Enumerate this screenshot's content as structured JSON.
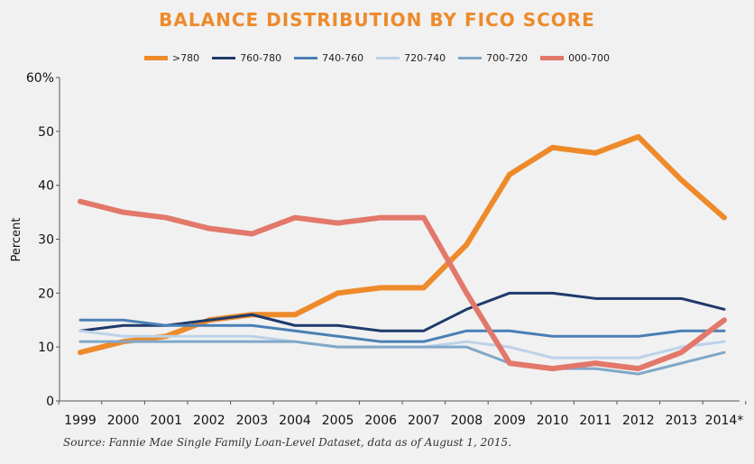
{
  "chart_data": {
    "type": "line",
    "title": "BALANCE DISTRIBUTION BY FICO SCORE",
    "ylabel": "Percent",
    "xlabel": "",
    "ylim": [
      0,
      60
    ],
    "yticks": [
      "0",
      "10",
      "20",
      "30",
      "40",
      "50",
      "60%"
    ],
    "categories": [
      "1999",
      "2000",
      "2001",
      "2002",
      "2003",
      "2004",
      "2005",
      "2006",
      "2007",
      "2008",
      "2009",
      "2010",
      "2011",
      "2012",
      "2013",
      "2014*"
    ],
    "legend_position": "top",
    "grid": false,
    "series": [
      {
        "name": ">780",
        "color": "#ee8a2a",
        "width": 6,
        "values": [
          9,
          11,
          12,
          15,
          16,
          16,
          20,
          21,
          21,
          29,
          42,
          47,
          46,
          49,
          41,
          34
        ]
      },
      {
        "name": "760-780",
        "color": "#1f3a6b",
        "width": 3,
        "values": [
          13,
          14,
          14,
          15,
          16,
          14,
          14,
          13,
          13,
          17,
          20,
          20,
          19,
          19,
          19,
          17
        ]
      },
      {
        "name": "740-760",
        "color": "#4a7fb5",
        "width": 3,
        "values": [
          15,
          15,
          14,
          14,
          14,
          13,
          12,
          11,
          11,
          13,
          13,
          12,
          12,
          12,
          13,
          13
        ]
      },
      {
        "name": "720-740",
        "color": "#bcd2e8",
        "width": 3,
        "values": [
          13,
          12,
          12,
          12,
          12,
          11,
          10,
          10,
          10,
          11,
          10,
          8,
          8,
          8,
          10,
          11
        ]
      },
      {
        "name": "700-720",
        "color": "#7fa8c9",
        "width": 3,
        "values": [
          11,
          11,
          11,
          11,
          11,
          11,
          10,
          10,
          10,
          10,
          7,
          6,
          6,
          5,
          7,
          9
        ]
      },
      {
        "name": "000-700",
        "color": "#e2786a",
        "width": 6,
        "values": [
          37,
          35,
          34,
          32,
          31,
          34,
          33,
          34,
          34,
          20,
          7,
          6,
          7,
          6,
          9,
          15
        ]
      }
    ],
    "source": "Source: Fannie Mae Single Family Loan-Level Dataset, data as of August 1, 2015."
  }
}
